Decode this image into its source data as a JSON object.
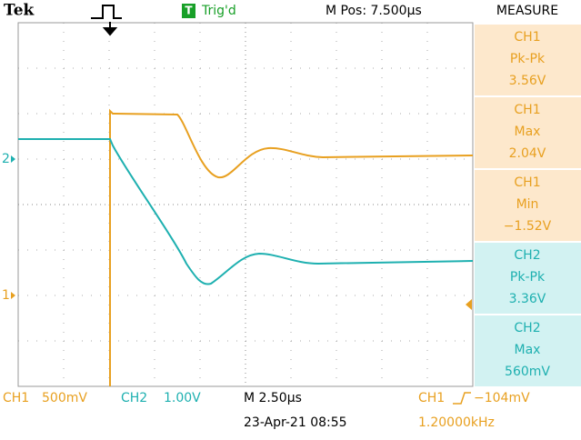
{
  "header": {
    "brand": "Tek",
    "trigger_icon": "T",
    "trigger_status": "Trig'd",
    "position": "M Pos: 7.500µs"
  },
  "measure": {
    "title": "MEASURE",
    "items": [
      {
        "channel": "CH1",
        "measure": "Pk-Pk",
        "value": "3.56V"
      },
      {
        "channel": "CH1",
        "measure": "Max",
        "value": "2.04V"
      },
      {
        "channel": "CH1",
        "measure": "Min",
        "value": "−1.52V"
      },
      {
        "channel": "CH2",
        "measure": "Pk-Pk",
        "value": "3.36V"
      },
      {
        "channel": "CH2",
        "measure": "Max",
        "value": "560mV"
      }
    ]
  },
  "markers": {
    "ch2": "2",
    "ch1": "1"
  },
  "footer": {
    "ch1": "CH1",
    "ch1_scale": "500mV",
    "ch2": "CH2",
    "ch2_scale": "1.00V",
    "timebase": "M 2.50µs",
    "datetime": "23-Apr-21 08:55",
    "trigger_source": "CH1",
    "trigger_level": "−104mV",
    "frequency": "1.20000kHz"
  }
}
